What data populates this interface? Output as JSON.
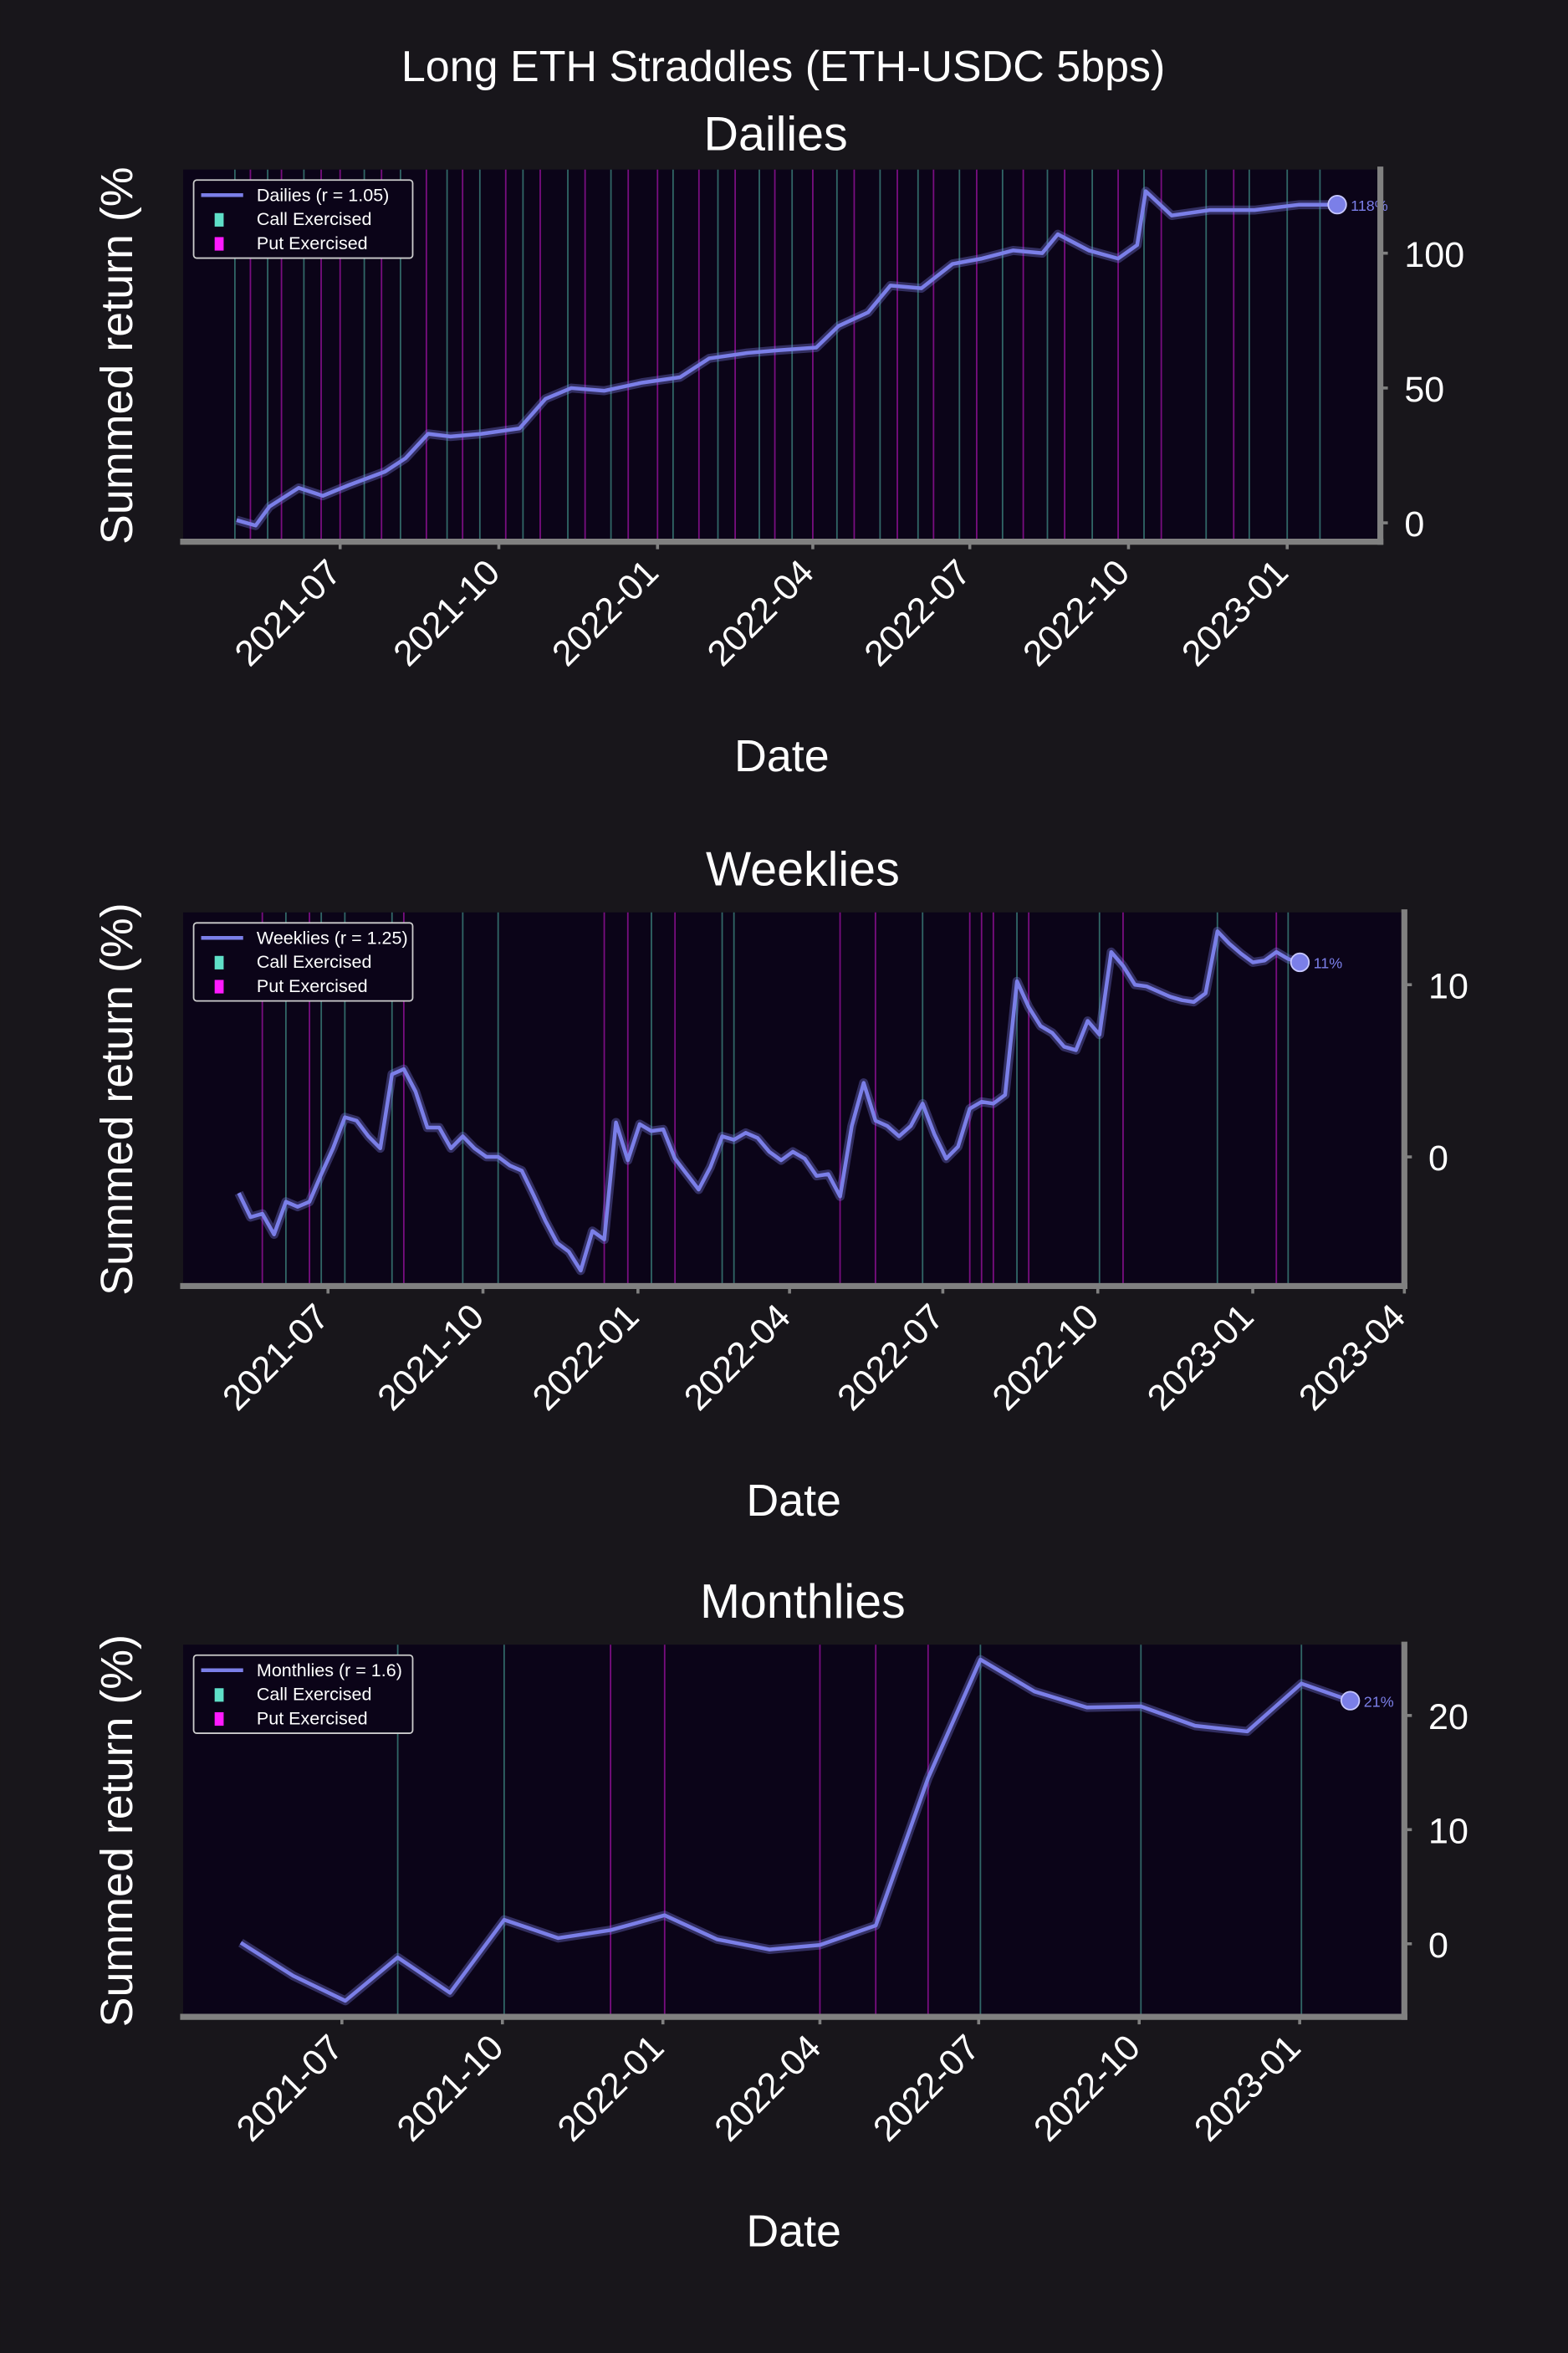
{
  "title": "Long ETH Straddles (ETH-USDC 5bps)",
  "chart_data": [
    {
      "type": "line",
      "title": "Dailies",
      "xlabel": "Date",
      "ylabel": "Summed return (%",
      "end_label": "118%",
      "xlim": [
        "2021-04-01",
        "2023-02-24"
      ],
      "xticks": [
        {
          "value": "2021-07-01",
          "label": "2021-07"
        },
        {
          "value": "2021-10-01",
          "label": "2021-10"
        },
        {
          "value": "2022-01-01",
          "label": "2022-01"
        },
        {
          "value": "2022-04-01",
          "label": "2022-04"
        },
        {
          "value": "2022-07-01",
          "label": "2022-07"
        },
        {
          "value": "2022-10-01",
          "label": "2022-10"
        },
        {
          "value": "2023-01-01",
          "label": "2023-01"
        }
      ],
      "ylim": [
        -7,
        131
      ],
      "yticks": [
        0,
        50,
        100
      ],
      "series": [
        {
          "name": "Dailies (r = 1.05)",
          "color": "#7b7fe8",
          "x": [
            "2021-05-02",
            "2021-05-13",
            "2021-05-21",
            "2021-06-07",
            "2021-06-21",
            "2021-07-06",
            "2021-07-27",
            "2021-08-08",
            "2021-08-21",
            "2021-09-03",
            "2021-09-21",
            "2021-10-13",
            "2021-10-28",
            "2021-11-12",
            "2021-12-01",
            "2021-12-23",
            "2022-01-14",
            "2022-01-31",
            "2022-02-22",
            "2022-03-12",
            "2022-04-03",
            "2022-04-16",
            "2022-05-03",
            "2022-05-16",
            "2022-06-03",
            "2022-06-21",
            "2022-07-08",
            "2022-07-26",
            "2022-08-12",
            "2022-08-21",
            "2022-09-08",
            "2022-09-25",
            "2022-10-06",
            "2022-10-11",
            "2022-10-26",
            "2022-11-17",
            "2022-12-13",
            "2023-01-08",
            "2023-01-30"
          ],
          "values": [
            1,
            -1,
            6,
            13,
            10,
            14,
            19,
            24,
            33,
            32,
            33,
            35,
            46,
            50,
            49,
            52,
            54,
            61,
            63,
            64,
            65,
            73,
            78,
            88,
            87,
            96,
            98,
            101,
            100,
            107,
            101,
            98,
            103,
            123,
            114,
            116,
            116,
            118,
            118
          ]
        }
      ],
      "events": [
        {
          "name": "Call Exercised",
          "color": "#5fe0c8",
          "x": [
            "2021-05-01",
            "2021-05-20",
            "2021-06-10",
            "2021-07-15",
            "2021-08-05",
            "2021-09-01",
            "2021-09-20",
            "2021-10-15",
            "2021-11-10",
            "2021-12-05",
            "2022-01-10",
            "2022-02-05",
            "2022-03-01",
            "2022-03-20",
            "2022-04-15",
            "2022-05-10",
            "2022-06-01",
            "2022-06-25",
            "2022-07-20",
            "2022-08-15",
            "2022-09-10",
            "2022-10-10",
            "2022-11-15",
            "2022-12-10",
            "2023-01-01",
            "2023-01-20"
          ]
        },
        {
          "name": "Put Exercised",
          "color": "#ff1aff",
          "x": [
            "2021-05-10",
            "2021-05-28",
            "2021-06-20",
            "2021-07-01",
            "2021-07-25",
            "2021-08-20",
            "2021-09-10",
            "2021-10-05",
            "2021-10-25",
            "2021-11-20",
            "2021-12-15",
            "2022-01-01",
            "2022-01-25",
            "2022-02-15",
            "2022-03-10",
            "2022-04-01",
            "2022-04-25",
            "2022-05-20",
            "2022-06-10",
            "2022-07-05",
            "2022-08-01",
            "2022-08-25",
            "2022-09-25",
            "2022-10-20",
            "2022-12-01"
          ]
        }
      ]
    },
    {
      "type": "line",
      "title": "Weeklies",
      "xlabel": "Date",
      "ylabel": "Summed return (%)",
      "end_label": "11%",
      "xlim": [
        "2021-04-06",
        "2023-04-01"
      ],
      "xticks": [
        {
          "value": "2021-07-01",
          "label": "2021-07"
        },
        {
          "value": "2021-10-01",
          "label": "2021-10"
        },
        {
          "value": "2022-01-01",
          "label": "2022-01"
        },
        {
          "value": "2022-04-01",
          "label": "2022-04"
        },
        {
          "value": "2022-07-01",
          "label": "2022-07"
        },
        {
          "value": "2022-10-01",
          "label": "2022-10"
        },
        {
          "value": "2023-01-01",
          "label": "2023-01"
        },
        {
          "value": "2023-04-01",
          "label": "2023-04"
        }
      ],
      "ylim": [
        -7.5,
        14.2
      ],
      "yticks": [
        0,
        10
      ],
      "series": [
        {
          "name": "Weeklies (r = 1.25)",
          "color": "#7b7fe8",
          "x": [
            "2021-05-09",
            "2021-05-16",
            "2021-05-23",
            "2021-05-30",
            "2021-06-06",
            "2021-06-13",
            "2021-06-20",
            "2021-06-27",
            "2021-07-04",
            "2021-07-11",
            "2021-07-18",
            "2021-07-25",
            "2021-08-01",
            "2021-08-08",
            "2021-08-15",
            "2021-08-22",
            "2021-08-29",
            "2021-09-05",
            "2021-09-12",
            "2021-09-19",
            "2021-09-26",
            "2021-10-03",
            "2021-10-10",
            "2021-10-17",
            "2021-10-24",
            "2021-10-31",
            "2021-11-07",
            "2021-11-14",
            "2021-11-21",
            "2021-11-28",
            "2021-12-05",
            "2021-12-12",
            "2021-12-19",
            "2021-12-26",
            "2022-01-02",
            "2022-01-09",
            "2022-01-16",
            "2022-01-23",
            "2022-01-30",
            "2022-02-06",
            "2022-02-13",
            "2022-02-20",
            "2022-02-27",
            "2022-03-06",
            "2022-03-13",
            "2022-03-20",
            "2022-03-27",
            "2022-04-03",
            "2022-04-10",
            "2022-04-17",
            "2022-04-24",
            "2022-05-01",
            "2022-05-08",
            "2022-05-15",
            "2022-05-22",
            "2022-05-29",
            "2022-06-05",
            "2022-06-12",
            "2022-06-19",
            "2022-06-26",
            "2022-07-03",
            "2022-07-10",
            "2022-07-17",
            "2022-07-24",
            "2022-07-31",
            "2022-08-07",
            "2022-08-14",
            "2022-08-21",
            "2022-08-28",
            "2022-09-04",
            "2022-09-11",
            "2022-09-18",
            "2022-09-25",
            "2022-10-02",
            "2022-10-09",
            "2022-10-16",
            "2022-10-23",
            "2022-10-30",
            "2022-11-06",
            "2022-11-13",
            "2022-11-20",
            "2022-11-27",
            "2022-12-04",
            "2022-12-11",
            "2022-12-18",
            "2022-12-25",
            "2023-01-01",
            "2023-01-08",
            "2023-01-15",
            "2023-01-22",
            "2023-01-29"
          ],
          "values": [
            -2.1,
            -3.5,
            -3.3,
            -4.5,
            -2.6,
            -2.9,
            -2.6,
            -1.0,
            0.5,
            2.3,
            2.1,
            1.2,
            0.5,
            4.8,
            5.1,
            3.8,
            1.7,
            1.7,
            0.5,
            1.2,
            0.5,
            0,
            0,
            -0.5,
            -0.8,
            -2.2,
            -3.7,
            -5.0,
            -5.5,
            -6.6,
            -4.3,
            -4.8,
            2.0,
            -0.2,
            1.9,
            1.5,
            1.6,
            -0.1,
            -1.0,
            -1.9,
            -0.6,
            1.2,
            1.0,
            1.4,
            1.1,
            0.3,
            -0.2,
            0.3,
            -0.1,
            -1.1,
            -1.0,
            -2.3,
            1.8,
            4.3,
            2.1,
            1.8,
            1.2,
            1.8,
            3.1,
            1.3,
            -0.1,
            0.6,
            2.8,
            3.2,
            3.1,
            3.6,
            10.2,
            8.7,
            7.6,
            7.2,
            6.4,
            6.2,
            7.9,
            7.1,
            11.9,
            11.1,
            10.0,
            9.9,
            9.6,
            9.3,
            9.1,
            9.0,
            9.5,
            13.1,
            12.4,
            11.8,
            11.3,
            11.4,
            11.9,
            11.5,
            11.3
          ]
        }
      ],
      "events": [
        {
          "name": "Call Exercised",
          "color": "#5fe0c8",
          "x": [
            "2021-06-06",
            "2021-06-27",
            "2021-07-11",
            "2021-08-08",
            "2021-09-19",
            "2021-10-10",
            "2022-01-09",
            "2022-02-20",
            "2022-02-27",
            "2022-06-19",
            "2022-08-14",
            "2022-10-02",
            "2022-12-11",
            "2023-01-22"
          ]
        },
        {
          "name": "Put Exercised",
          "color": "#ff1aff",
          "x": [
            "2021-05-23",
            "2021-06-20",
            "2021-08-15",
            "2021-12-12",
            "2021-12-26",
            "2022-01-23",
            "2022-05-01",
            "2022-05-22",
            "2022-07-17",
            "2022-07-24",
            "2022-07-31",
            "2022-08-21",
            "2022-10-16",
            "2023-01-15"
          ]
        }
      ]
    },
    {
      "type": "line",
      "title": "Monthlies",
      "xlabel": "Date",
      "ylabel": "Summed return (%)",
      "end_label": "21%",
      "xlim": [
        "2021-04-01",
        "2023-03-02"
      ],
      "xticks": [
        {
          "value": "2021-07-01",
          "label": "2021-07"
        },
        {
          "value": "2021-10-01",
          "label": "2021-10"
        },
        {
          "value": "2022-01-01",
          "label": "2022-01"
        },
        {
          "value": "2022-04-01",
          "label": "2022-04"
        },
        {
          "value": "2022-07-01",
          "label": "2022-07"
        },
        {
          "value": "2022-10-01",
          "label": "2022-10"
        },
        {
          "value": "2023-01-01",
          "label": "2023-01"
        }
      ],
      "ylim": [
        -6.4,
        26.2
      ],
      "yticks": [
        0,
        10,
        20
      ],
      "series": [
        {
          "name": "Monthlies (r = 1.6)",
          "color": "#7b7fe8",
          "x": [
            "2021-05-04",
            "2021-06-03",
            "2021-07-03",
            "2021-08-02",
            "2021-09-01",
            "2021-10-02",
            "2021-11-02",
            "2021-12-02",
            "2022-01-02",
            "2022-02-01",
            "2022-03-03",
            "2022-04-01",
            "2022-05-03",
            "2022-06-02",
            "2022-07-02",
            "2022-08-02",
            "2022-09-01",
            "2022-10-02",
            "2022-11-02",
            "2022-12-02",
            "2023-01-02",
            "2023-01-30"
          ],
          "values": [
            0.1,
            -2.8,
            -5,
            -1.2,
            -4.3,
            2.1,
            0.5,
            1.2,
            2.5,
            0.4,
            -0.5,
            -0.1,
            1.6,
            14.5,
            24.9,
            22.1,
            20.7,
            20.8,
            19.1,
            18.6,
            22.8,
            21.3
          ]
        }
      ],
      "events": [
        {
          "name": "Call Exercised",
          "color": "#5fe0c8",
          "x": [
            "2021-08-02",
            "2021-10-02",
            "2022-07-02",
            "2022-10-02",
            "2023-01-02"
          ]
        },
        {
          "name": "Put Exercised",
          "color": "#ff1aff",
          "x": [
            "2021-12-02",
            "2022-01-02",
            "2022-04-01",
            "2022-05-03",
            "2022-06-02"
          ]
        }
      ]
    }
  ]
}
